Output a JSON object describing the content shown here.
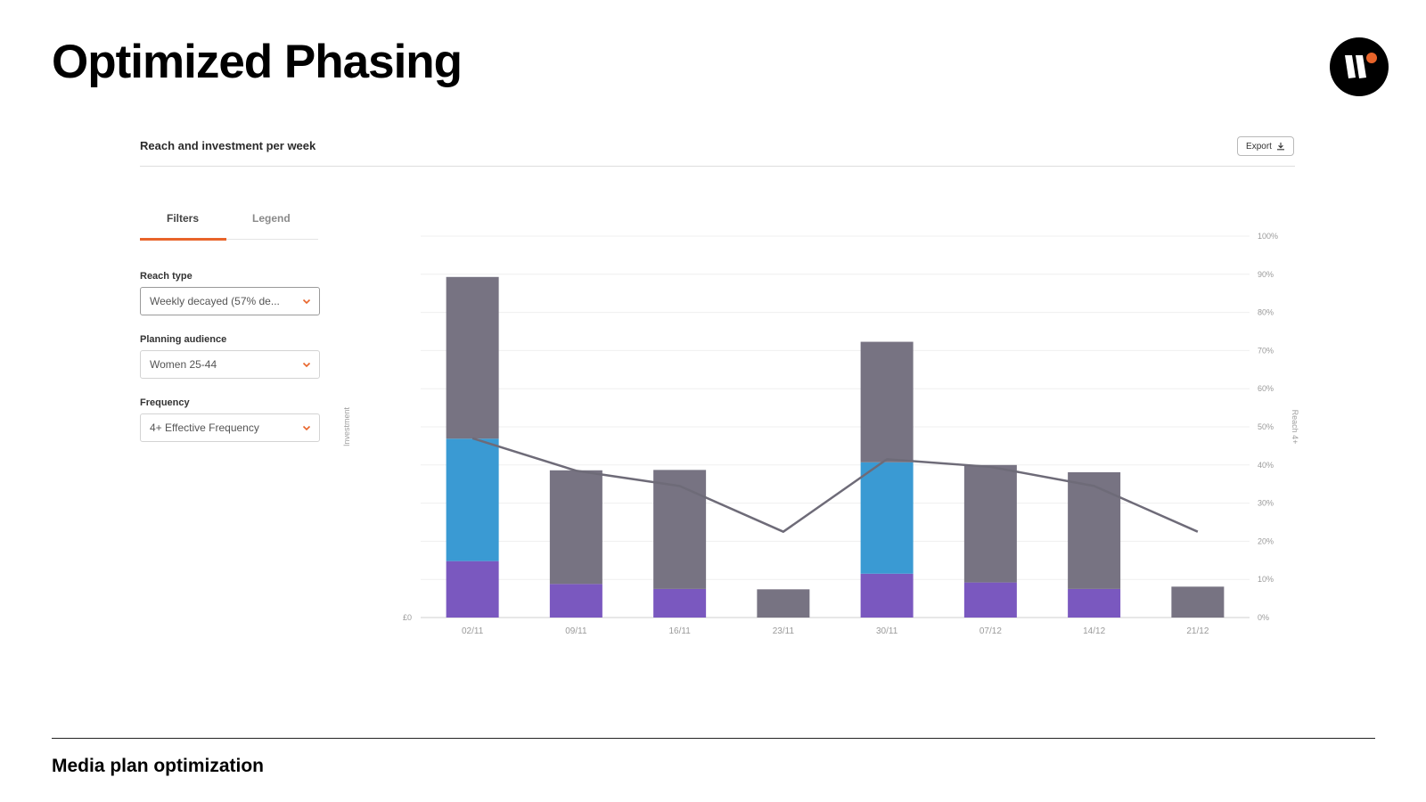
{
  "slide": {
    "title": "Optimized Phasing",
    "footer": "Media plan optimization"
  },
  "panel": {
    "title": "Reach and investment per week",
    "export_label": "Export",
    "tabs": [
      "Filters",
      "Legend"
    ],
    "active_tab": "Filters"
  },
  "filters": {
    "reach_type": {
      "label": "Reach type",
      "value": "Weekly decayed (57% de..."
    },
    "planning_audience": {
      "label": "Planning audience",
      "value": "Women 25-44"
    },
    "frequency": {
      "label": "Frequency",
      "value": "4+ Effective Frequency"
    }
  },
  "icons": {
    "logo": "brand-logo-icon",
    "export": "download-icon",
    "select": "chevron-down-icon"
  },
  "colors": {
    "accent": "#e8642a",
    "series_gray": "#777382",
    "series_blue": "#3a9ad3",
    "series_purple": "#7a58bf",
    "line": "#6e6b78"
  },
  "chart_data": {
    "type": "bar",
    "stacked": true,
    "categories": [
      "02/11",
      "09/11",
      "16/11",
      "23/11",
      "30/11",
      "07/12",
      "14/12",
      "21/12"
    ],
    "left_axis": {
      "label": "Investment",
      "ticks": [
        "£0",
        "",
        "",
        "",
        "",
        "",
        "",
        "",
        "",
        "",
        ""
      ],
      "ylim": [
        0,
        100
      ]
    },
    "right_axis": {
      "label": "Reach 4+",
      "ticks": [
        "0%",
        "10%",
        "20%",
        "30%",
        "40%",
        "50%",
        "60%",
        "70%",
        "80%",
        "90%",
        "100%"
      ],
      "ylim": [
        0,
        100
      ]
    },
    "series": [
      {
        "color": "#7a58bf",
        "values": [
          14.8,
          8.8,
          7.5,
          0,
          11.5,
          9.2,
          7.5,
          0
        ]
      },
      {
        "color": "#3a9ad3",
        "values": [
          32.1,
          0,
          0,
          0,
          29.2,
          0,
          0,
          0
        ]
      },
      {
        "color": "#777382",
        "values": [
          42.4,
          29.8,
          31.2,
          7.4,
          31.6,
          30.8,
          30.6,
          8.1
        ]
      }
    ],
    "line": {
      "axis": "right",
      "values": [
        47,
        38.5,
        34.5,
        22.5,
        41.5,
        39.5,
        34.5,
        22.5
      ]
    },
    "grid": true
  }
}
